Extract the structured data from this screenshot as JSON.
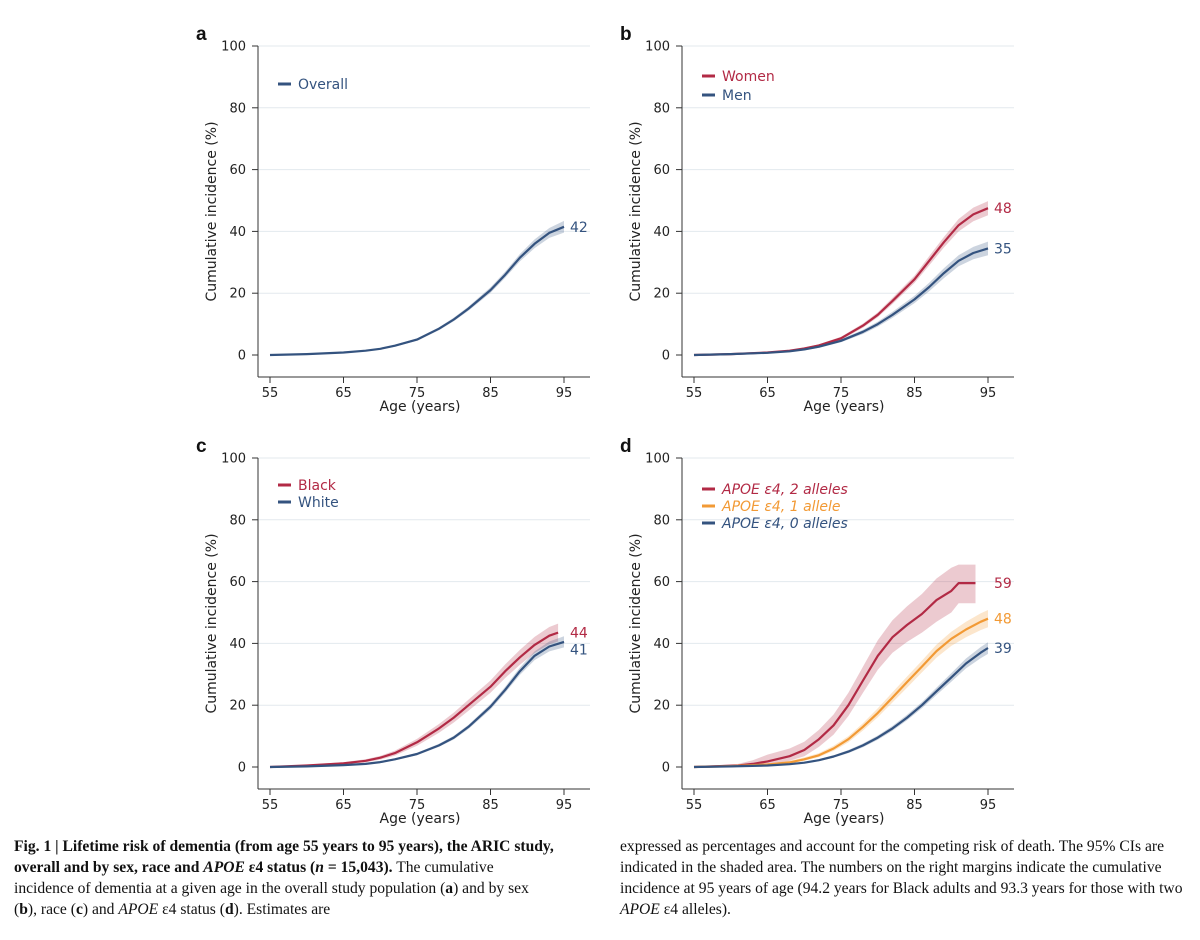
{
  "colors": {
    "red": "#b22a45",
    "blue": "#34537f",
    "orange": "#f29a35",
    "grid": "#e3e9ee",
    "axis": "#333333"
  },
  "chart_data": [
    {
      "panel": "a",
      "type": "line",
      "xlabel": "Age (years)",
      "ylabel": "Cumulative incidence (%)",
      "xlim": [
        55,
        95
      ],
      "ylim": [
        0,
        100
      ],
      "xticks": [
        "55",
        "65",
        "75",
        "85",
        "95"
      ],
      "yticks": [
        "0",
        "20",
        "40",
        "60",
        "80",
        "100"
      ],
      "grid": true,
      "legend_position": "top-left",
      "series": [
        {
          "name": "Overall",
          "color": "blue",
          "end_label": "42",
          "x": [
            55,
            60,
            65,
            68,
            70,
            72,
            75,
            78,
            80,
            82,
            85,
            87,
            89,
            91,
            93,
            95
          ],
          "y": [
            0,
            0.3,
            0.8,
            1.4,
            2.0,
            3.0,
            5.0,
            8.5,
            11.5,
            15.0,
            21.0,
            26.0,
            31.5,
            36.0,
            39.5,
            41.5
          ],
          "ci_lower": [
            0,
            0.2,
            0.7,
            1.2,
            1.8,
            2.7,
            4.6,
            8.0,
            10.9,
            14.3,
            20.1,
            25.0,
            30.3,
            34.6,
            37.9,
            39.6
          ],
          "ci_upper": [
            0,
            0.4,
            0.9,
            1.6,
            2.2,
            3.3,
            5.4,
            9.0,
            12.1,
            15.7,
            21.9,
            27.0,
            32.7,
            37.4,
            41.1,
            43.4
          ]
        }
      ]
    },
    {
      "panel": "b",
      "type": "line",
      "xlabel": "Age (years)",
      "ylabel": "Cumulative incidence (%)",
      "xlim": [
        55,
        95
      ],
      "ylim": [
        0,
        100
      ],
      "xticks": [
        "55",
        "65",
        "75",
        "85",
        "95"
      ],
      "yticks": [
        "0",
        "20",
        "40",
        "60",
        "80",
        "100"
      ],
      "grid": true,
      "legend_position": "top-left",
      "series": [
        {
          "name": "Women",
          "color": "red",
          "end_label": "48",
          "x": [
            55,
            60,
            65,
            68,
            70,
            72,
            75,
            78,
            80,
            82,
            85,
            87,
            89,
            91,
            93,
            95
          ],
          "y": [
            0,
            0.3,
            0.8,
            1.4,
            2.1,
            3.1,
            5.4,
            9.5,
            13.0,
            17.5,
            24.5,
            30.5,
            36.5,
            42.0,
            45.5,
            47.5
          ],
          "ci_lower": [
            0,
            0.2,
            0.6,
            1.2,
            1.8,
            2.7,
            4.9,
            8.8,
            12.2,
            16.5,
            23.3,
            29.0,
            34.8,
            40.0,
            43.3,
            45.2
          ],
          "ci_upper": [
            0,
            0.4,
            1.0,
            1.6,
            2.4,
            3.5,
            5.9,
            10.2,
            13.8,
            18.5,
            25.7,
            32.0,
            38.2,
            44.0,
            47.7,
            49.8
          ]
        },
        {
          "name": "Men",
          "color": "blue",
          "end_label": "35",
          "x": [
            55,
            60,
            65,
            68,
            70,
            72,
            75,
            78,
            80,
            82,
            85,
            87,
            89,
            91,
            93,
            95
          ],
          "y": [
            0,
            0.3,
            0.7,
            1.2,
            1.8,
            2.7,
            4.6,
            7.5,
            10.0,
            13.0,
            18.0,
            22.0,
            26.5,
            30.5,
            33.0,
            34.5
          ],
          "ci_lower": [
            0,
            0.2,
            0.5,
            1.0,
            1.5,
            2.3,
            4.1,
            6.8,
            9.2,
            12.0,
            16.8,
            20.6,
            24.9,
            28.7,
            31.0,
            32.3
          ],
          "ci_upper": [
            0,
            0.4,
            0.9,
            1.4,
            2.1,
            3.1,
            5.1,
            8.2,
            10.8,
            14.0,
            19.2,
            23.4,
            28.1,
            32.3,
            35.0,
            36.7
          ]
        }
      ]
    },
    {
      "panel": "c",
      "type": "line",
      "xlabel": "Age (years)",
      "ylabel": "Cumulative incidence (%)",
      "xlim": [
        55,
        95
      ],
      "ylim": [
        0,
        100
      ],
      "xticks": [
        "55",
        "65",
        "75",
        "85",
        "95"
      ],
      "yticks": [
        "0",
        "20",
        "40",
        "60",
        "80",
        "100"
      ],
      "grid": true,
      "legend_position": "top-left",
      "series": [
        {
          "name": "Black",
          "color": "red",
          "end_label": "44",
          "x": [
            55,
            60,
            65,
            68,
            70,
            72,
            75,
            78,
            80,
            82,
            85,
            87,
            89,
            91,
            93,
            94.2
          ],
          "y": [
            0,
            0.5,
            1.2,
            2.0,
            3.0,
            4.5,
            8.0,
            12.5,
            16.0,
            20.0,
            26.0,
            31.0,
            35.5,
            39.5,
            42.5,
            43.5
          ],
          "ci_lower": [
            0,
            0.3,
            0.8,
            1.5,
            2.4,
            3.7,
            6.9,
            11.1,
            14.4,
            18.2,
            24.0,
            28.8,
            33.1,
            36.9,
            39.7,
            40.6
          ],
          "ci_upper": [
            0,
            0.7,
            1.6,
            2.5,
            3.6,
            5.3,
            9.1,
            13.9,
            17.6,
            21.8,
            28.0,
            33.2,
            37.9,
            42.1,
            45.3,
            46.4
          ]
        },
        {
          "name": "White",
          "color": "blue",
          "end_label": "41",
          "x": [
            55,
            60,
            65,
            68,
            70,
            72,
            75,
            78,
            80,
            82,
            85,
            87,
            89,
            91,
            93,
            95
          ],
          "y": [
            0,
            0.2,
            0.6,
            1.0,
            1.6,
            2.5,
            4.2,
            7.0,
            9.5,
            13.0,
            19.5,
            25.0,
            31.0,
            36.0,
            39.0,
            40.5
          ],
          "ci_lower": [
            0,
            0.1,
            0.5,
            0.8,
            1.4,
            2.2,
            3.8,
            6.5,
            8.9,
            12.3,
            18.6,
            24.0,
            29.8,
            34.6,
            37.4,
            38.7
          ],
          "ci_upper": [
            0,
            0.3,
            0.7,
            1.2,
            1.8,
            2.8,
            4.6,
            7.5,
            10.1,
            13.7,
            20.4,
            26.0,
            32.2,
            37.4,
            40.6,
            42.3
          ]
        }
      ]
    },
    {
      "panel": "d",
      "type": "line",
      "xlabel": "Age (years)",
      "ylabel": "Cumulative incidence (%)",
      "xlim": [
        55,
        95
      ],
      "ylim": [
        0,
        100
      ],
      "xticks": [
        "55",
        "65",
        "75",
        "85",
        "95"
      ],
      "yticks": [
        "0",
        "20",
        "40",
        "60",
        "80",
        "100"
      ],
      "grid": true,
      "legend_position": "top-left",
      "series": [
        {
          "name": "APOE ε4, 2 alleles",
          "color": "red",
          "end_label": "59",
          "x": [
            55,
            61,
            63,
            65,
            68,
            70,
            72,
            74,
            76,
            78,
            80,
            82,
            84,
            86,
            88,
            90,
            91,
            93.3
          ],
          "y": [
            0,
            0.5,
            1.0,
            1.8,
            3.5,
            5.5,
            9.0,
            13.5,
            20.0,
            28.0,
            36.0,
            42.0,
            46.0,
            49.5,
            54.0,
            57.0,
            59.5,
            59.5
          ],
          "ci_lower": [
            0,
            0.2,
            0.4,
            0.8,
            2.0,
            3.5,
            6.5,
            10.5,
            16.5,
            24.0,
            31.5,
            37.0,
            40.5,
            43.5,
            47.0,
            50.0,
            53.0,
            53.0
          ],
          "ci_upper": [
            0,
            1.0,
            2.2,
            4.0,
            6.0,
            8.2,
            12.0,
            17.0,
            24.0,
            32.5,
            41.0,
            47.5,
            52.0,
            56.0,
            61.0,
            64.5,
            65.5,
            65.5
          ]
        },
        {
          "name": "APOE ε4, 1 allele",
          "color": "orange",
          "end_label": "48",
          "x": [
            55,
            60,
            65,
            68,
            70,
            72,
            74,
            76,
            78,
            80,
            82,
            84,
            86,
            88,
            90,
            92,
            94,
            95
          ],
          "y": [
            0,
            0.3,
            0.8,
            1.5,
            2.5,
            3.8,
            6.0,
            9.0,
            13.0,
            17.5,
            22.5,
            27.5,
            32.5,
            37.5,
            41.5,
            44.5,
            47.0,
            48.0
          ],
          "ci_lower": [
            0,
            0.2,
            0.5,
            1.1,
            2.0,
            3.2,
            5.2,
            8.0,
            11.8,
            16.1,
            20.9,
            25.7,
            30.6,
            35.4,
            39.2,
            42.0,
            44.3,
            45.2
          ],
          "ci_upper": [
            0,
            0.5,
            1.1,
            2.0,
            3.1,
            4.5,
            6.9,
            10.0,
            14.2,
            19.0,
            24.2,
            29.3,
            34.4,
            39.6,
            43.8,
            47.0,
            49.7,
            50.8
          ]
        },
        {
          "name": "APOE ε4, 0 alleles",
          "color": "blue",
          "end_label": "39",
          "x": [
            55,
            60,
            65,
            68,
            70,
            72,
            74,
            76,
            78,
            80,
            82,
            84,
            86,
            88,
            90,
            92,
            94,
            95
          ],
          "y": [
            0,
            0.2,
            0.5,
            0.9,
            1.4,
            2.2,
            3.4,
            5.0,
            7.0,
            9.5,
            12.5,
            16.0,
            20.0,
            24.5,
            29.0,
            33.5,
            37.0,
            38.5
          ],
          "ci_lower": [
            0,
            0.1,
            0.4,
            0.7,
            1.2,
            1.9,
            3.0,
            4.5,
            6.4,
            8.8,
            11.7,
            15.1,
            19.0,
            23.3,
            27.6,
            31.9,
            35.2,
            36.6
          ],
          "ci_upper": [
            0,
            0.3,
            0.6,
            1.1,
            1.6,
            2.5,
            3.8,
            5.5,
            7.6,
            10.2,
            13.3,
            16.9,
            21.0,
            25.7,
            30.4,
            35.1,
            38.8,
            40.4
          ]
        }
      ]
    }
  ],
  "caption": {
    "fig_label": "Fig. 1 | ",
    "title": "Lifetime risk of dementia (from age 55  years to 95  years), the ARIC study, overall and by sex, race and ",
    "title_gene": "APOE",
    "title_after_gene": " ε4 status (",
    "title_n": "n",
    "title_end": " = 15,043).",
    "l1": " The cumulative incidence of dementia at a given age in the overall study population (",
    "l_a": "a",
    "l2": ") and by sex (",
    "l_b": "b",
    "l3": "), race (",
    "l_c": "c",
    "l4": ") and ",
    "l_gene": "APOE",
    "l5": " ε4 status (",
    "l_d": "d",
    "l6": "). Estimates are",
    "r1": "expressed as percentages and account for the competing risk of death. The 95% CIs are indicated in the shaded area. The numbers on the right margins indicate the cumulative incidence at 95 years of age (94.2 years for Black adults and 93.3 years for those with two ",
    "r_gene": "APOE",
    "r2": " ε4 alleles)."
  }
}
